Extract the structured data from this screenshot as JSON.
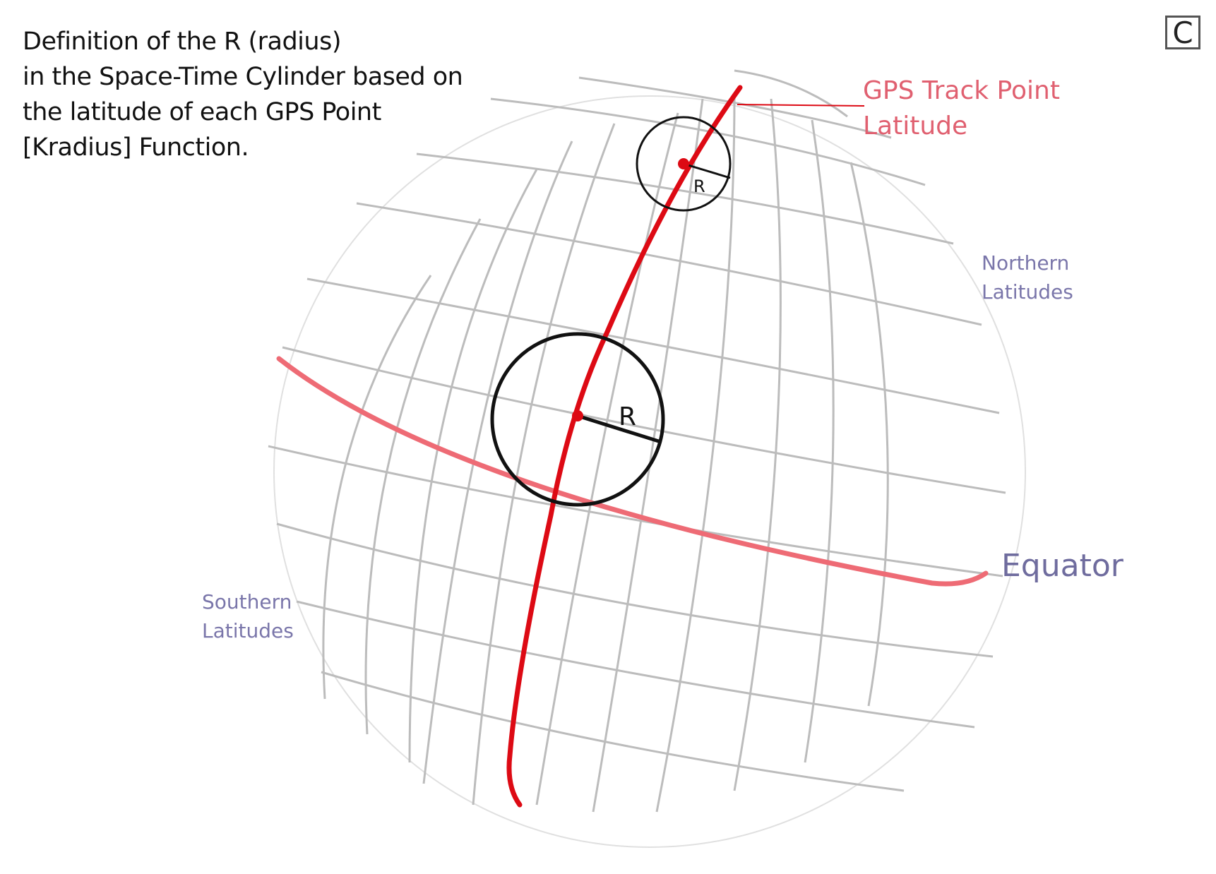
{
  "title_lines": [
    "Definition of the R (radius)",
    "in the Space-Time Cylinder based on",
    "the latitude of each GPS Point",
    "[Kradius] Function."
  ],
  "panel_label": "C",
  "labels": {
    "gps_track_point": [
      "GPS Track Point",
      "Latitude"
    ],
    "northern_latitudes": [
      "Northern",
      "Latitudes"
    ],
    "southern_latitudes": [
      "Southern",
      "Latitudes"
    ],
    "equator": "Equator"
  },
  "radius_marks": {
    "small_circle": "R",
    "large_circle": "R"
  },
  "colors": {
    "track": "#dd0a14",
    "equator_line": "#ee6b75",
    "grid": "#bbbbbb",
    "circle": "#111111",
    "latitude_text": "#7a76aa"
  },
  "icons": {
    "gps_point_marker": "red-dot",
    "radius_circle": "circle-outline"
  }
}
